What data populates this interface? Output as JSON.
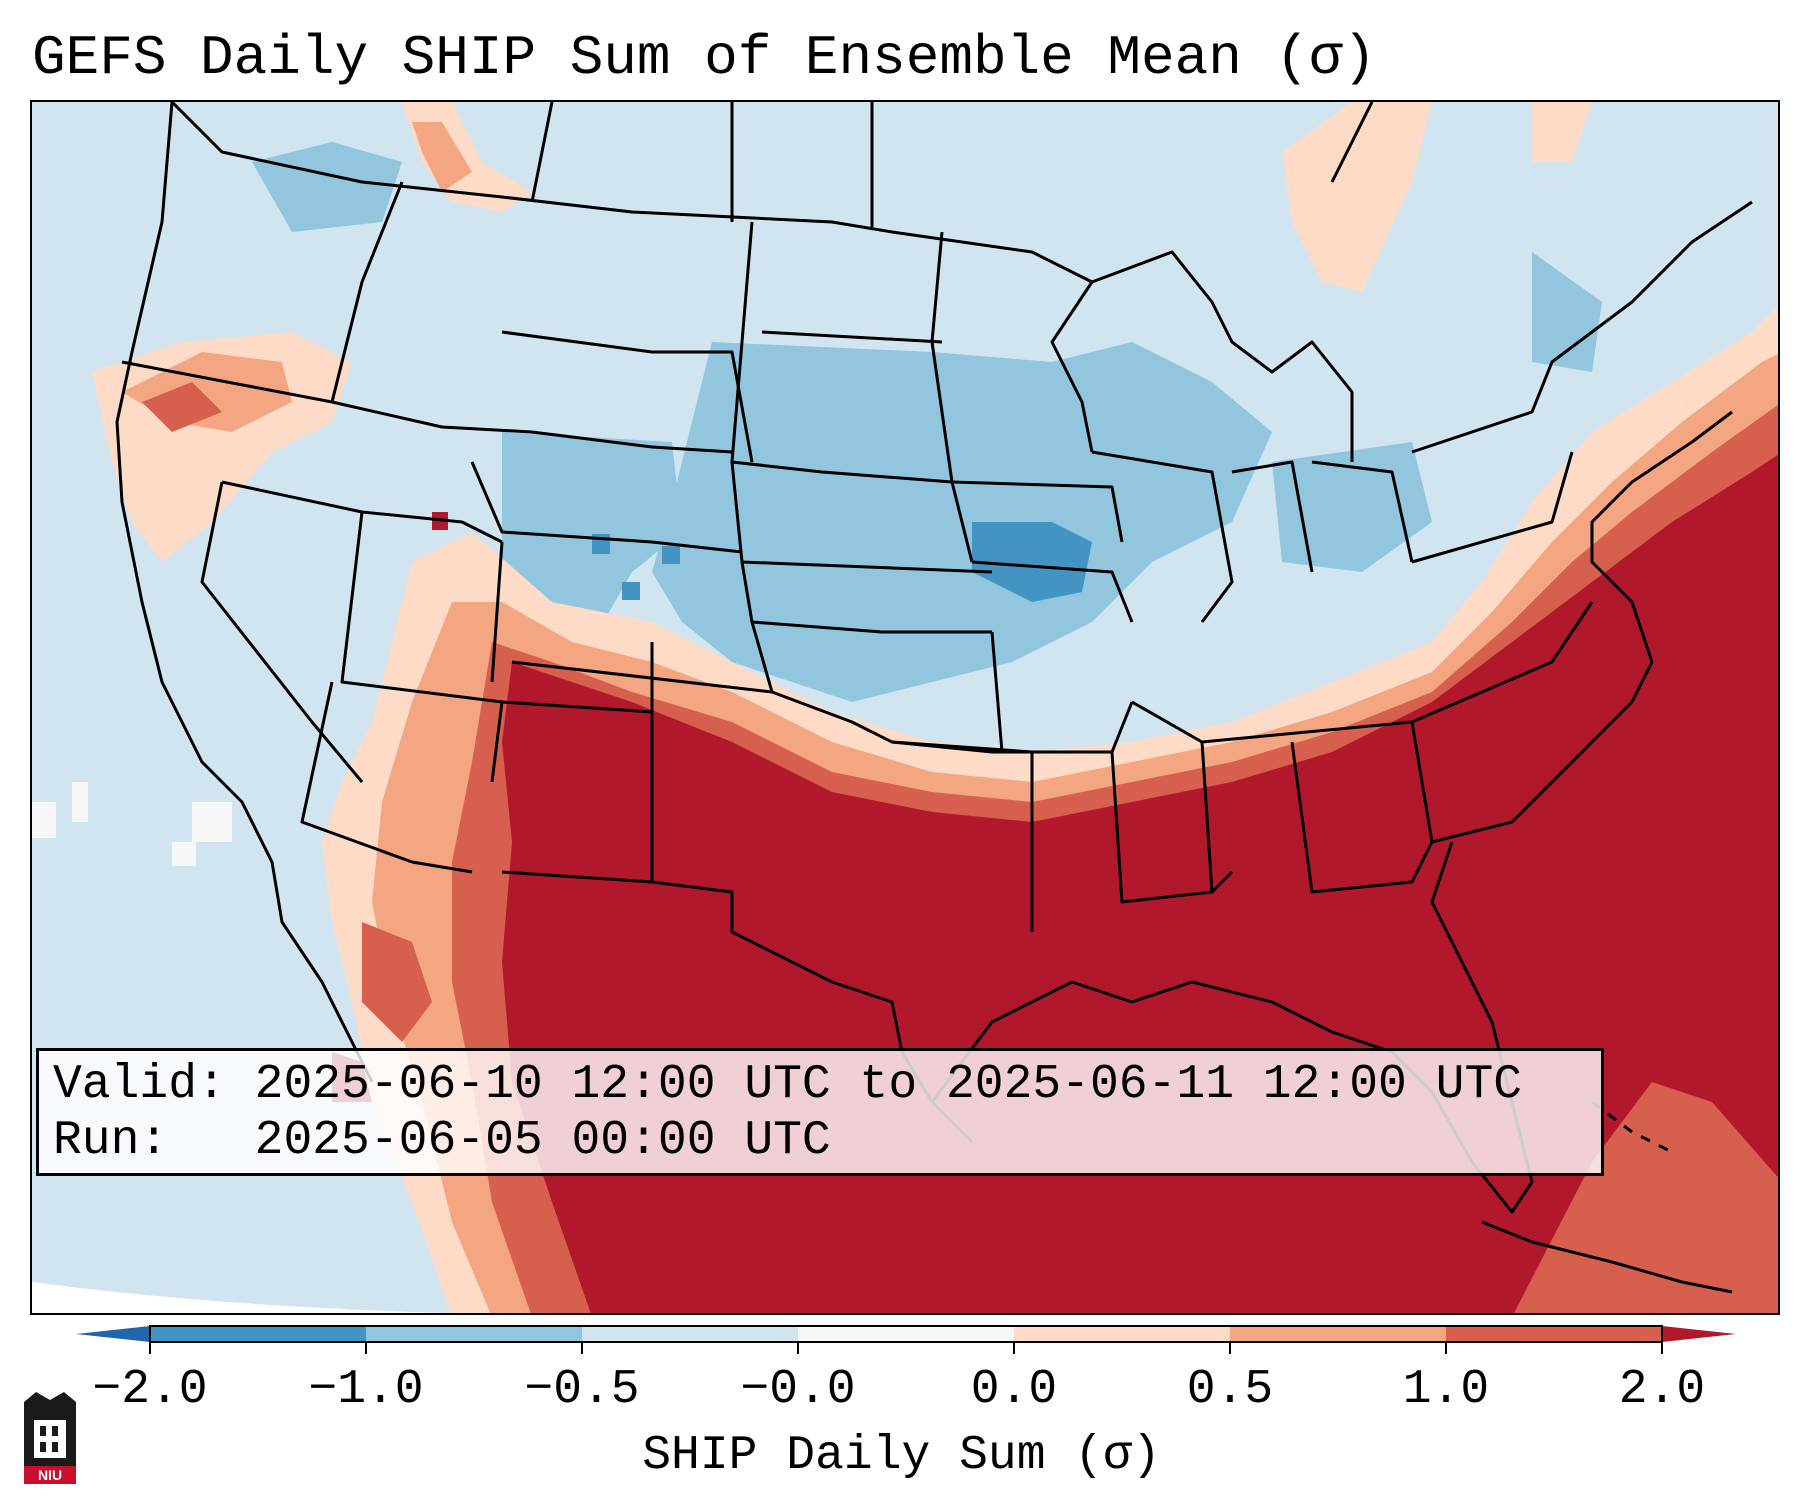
{
  "title": "GEFS Daily SHIP Sum of Ensemble Mean (σ)",
  "info": {
    "valid_label": "Valid:",
    "valid_value": "2025-06-10 12:00 UTC to 2025-06-11 12:00 UTC",
    "run_label": "Run:",
    "run_value": "2025-06-05 00:00 UTC"
  },
  "colorbar": {
    "label": "SHIP Daily Sum (σ)",
    "tick_labels": [
      "−2.0",
      "−1.0",
      "−0.5",
      "−0.0",
      "0.0",
      "0.5",
      "1.0",
      "2.0"
    ],
    "bin_colors": [
      "#4393c3",
      "#92c5de",
      "#d1e5f0",
      "#f7f7f7",
      "#fddbc7",
      "#f4a582",
      "#d6604d"
    ],
    "under_color": "#2166ac",
    "over_color": "#b2182b",
    "extend": "both"
  },
  "map": {
    "region": "Contiguous United States",
    "ocean_color": "#d1e5f0",
    "high_anomaly_regions": [
      "Texas",
      "Gulf Coast",
      "Southeast",
      "Atlantic coast",
      "New Mexico"
    ],
    "low_anomaly_regions": [
      "Missouri",
      "Iowa",
      "Illinois",
      "Colorado",
      "Great Lakes"
    ]
  },
  "logo": {
    "text": "NIU",
    "color": "#c8102e"
  }
}
